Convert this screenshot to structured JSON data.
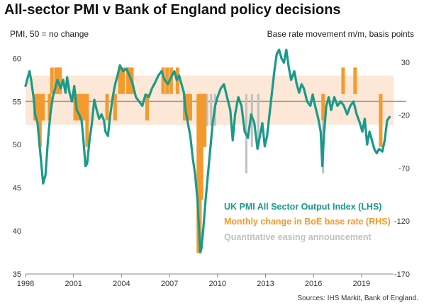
{
  "title": "All-sector PMI v Bank of England policy decisions",
  "left_axis_label": "PMI, 50 = no change",
  "right_axis_label": "Base rate movement m/m, basis points",
  "source": "Sources: IHS Markit, Bank of England.",
  "colors": {
    "pmi": "#1a9a8a",
    "rate": "#f39a2e",
    "qe": "#c0c0c0",
    "band": "#fde7d6",
    "ref_line": "#9a9a9a"
  },
  "chart_data": {
    "type": "line",
    "title": "All-sector PMI v Bank of England policy decisions",
    "ylabel_left": "PMI, 50 = no change",
    "ylabel_right": "Base rate movement m/m, basis points",
    "ylim_left": [
      35,
      62
    ],
    "ylim_right": [
      -170,
      50
    ],
    "yticks_left": [
      35,
      40,
      45,
      50,
      55,
      60
    ],
    "yticks_right": [
      30,
      -20,
      -70,
      -120,
      -170
    ],
    "xticks": [
      "1998",
      "2001",
      "2004",
      "2007",
      "2010",
      "2013",
      "2016",
      "2019"
    ],
    "xlim": [
      1998.0,
      2021.0
    ],
    "shaded_band_left": [
      52.3,
      58.0
    ],
    "reference_line_left": 55,
    "legend": [
      {
        "label": "UK PMI All Sector Output Index (LHS)",
        "color": "#1a9a8a"
      },
      {
        "label": "Monthly change in BoE base rate (RHS)",
        "color": "#f39a2e"
      },
      {
        "label": "Quantitative easing announcement",
        "color": "#c0c0c0"
      }
    ],
    "series": [
      {
        "name": "UK PMI All Sector Output Index (LHS)",
        "axis": "left",
        "points": [
          [
            1998.0,
            56.8
          ],
          [
            1998.1,
            57.5
          ],
          [
            1998.25,
            58.5
          ],
          [
            1998.35,
            57.5
          ],
          [
            1998.5,
            55.5
          ],
          [
            1998.6,
            53.5
          ],
          [
            1998.75,
            52.5
          ],
          [
            1998.85,
            50.5
          ],
          [
            1999.0,
            47.5
          ],
          [
            1999.1,
            45.5
          ],
          [
            1999.25,
            46.5
          ],
          [
            1999.4,
            50.5
          ],
          [
            1999.55,
            53.5
          ],
          [
            1999.7,
            55.5
          ],
          [
            1999.85,
            56.5
          ],
          [
            2000.0,
            57.5
          ],
          [
            2000.2,
            56.5
          ],
          [
            2000.35,
            57.5
          ],
          [
            2000.5,
            56.0
          ],
          [
            2000.6,
            57.8
          ],
          [
            2000.75,
            56.0
          ],
          [
            2000.9,
            55.0
          ],
          [
            2001.05,
            56.8
          ],
          [
            2001.2,
            54.0
          ],
          [
            2001.35,
            53.5
          ],
          [
            2001.5,
            52.8
          ],
          [
            2001.6,
            51.0
          ],
          [
            2001.75,
            47.5
          ],
          [
            2001.85,
            47.8
          ],
          [
            2002.0,
            50.5
          ],
          [
            2002.15,
            52.5
          ],
          [
            2002.3,
            55.2
          ],
          [
            2002.45,
            54.0
          ],
          [
            2002.6,
            53.0
          ],
          [
            2002.75,
            53.5
          ],
          [
            2002.9,
            52.8
          ],
          [
            2003.0,
            51.5
          ],
          [
            2003.15,
            51.0
          ],
          [
            2003.3,
            53.5
          ],
          [
            2003.45,
            55.5
          ],
          [
            2003.6,
            57.0
          ],
          [
            2003.75,
            58.0
          ],
          [
            2003.9,
            59.2
          ],
          [
            2004.1,
            58.5
          ],
          [
            2004.3,
            58.8
          ],
          [
            2004.5,
            58.0
          ],
          [
            2004.7,
            57.0
          ],
          [
            2004.9,
            55.5
          ],
          [
            2005.1,
            55.0
          ],
          [
            2005.3,
            54.5
          ],
          [
            2005.5,
            55.8
          ],
          [
            2005.7,
            55.5
          ],
          [
            2005.9,
            56.5
          ],
          [
            2006.1,
            57.2
          ],
          [
            2006.3,
            58.0
          ],
          [
            2006.5,
            58.5
          ],
          [
            2006.7,
            57.5
          ],
          [
            2006.9,
            57.0
          ],
          [
            2007.1,
            57.8
          ],
          [
            2007.3,
            58.5
          ],
          [
            2007.45,
            57.5
          ],
          [
            2007.6,
            58.0
          ],
          [
            2007.75,
            57.0
          ],
          [
            2007.9,
            56.0
          ],
          [
            2008.0,
            54.0
          ],
          [
            2008.15,
            52.5
          ],
          [
            2008.3,
            51.0
          ],
          [
            2008.45,
            48.5
          ],
          [
            2008.6,
            46.5
          ],
          [
            2008.75,
            43.5
          ],
          [
            2008.85,
            40.0
          ],
          [
            2008.92,
            37.5
          ],
          [
            2009.0,
            38.0
          ],
          [
            2009.1,
            40.0
          ],
          [
            2009.25,
            43.5
          ],
          [
            2009.4,
            46.5
          ],
          [
            2009.55,
            49.5
          ],
          [
            2009.7,
            52.5
          ],
          [
            2009.85,
            54.5
          ],
          [
            2010.0,
            55.5
          ],
          [
            2010.2,
            56.5
          ],
          [
            2010.4,
            57.0
          ],
          [
            2010.6,
            55.5
          ],
          [
            2010.8,
            54.0
          ],
          [
            2010.95,
            50.5
          ],
          [
            2011.1,
            53.5
          ],
          [
            2011.3,
            55.5
          ],
          [
            2011.5,
            54.5
          ],
          [
            2011.7,
            51.5
          ],
          [
            2011.9,
            50.8
          ],
          [
            2012.1,
            53.5
          ],
          [
            2012.3,
            52.5
          ],
          [
            2012.5,
            49.5
          ],
          [
            2012.65,
            51.0
          ],
          [
            2012.8,
            52.5
          ],
          [
            2012.95,
            49.8
          ],
          [
            2013.1,
            51.0
          ],
          [
            2013.25,
            53.5
          ],
          [
            2013.4,
            56.0
          ],
          [
            2013.55,
            58.5
          ],
          [
            2013.7,
            60.5
          ],
          [
            2013.85,
            61.0
          ],
          [
            2014.0,
            60.0
          ],
          [
            2014.15,
            59.5
          ],
          [
            2014.3,
            61.0
          ],
          [
            2014.45,
            59.0
          ],
          [
            2014.6,
            57.5
          ],
          [
            2014.8,
            58.5
          ],
          [
            2014.95,
            57.0
          ],
          [
            2015.1,
            56.0
          ],
          [
            2015.25,
            57.0
          ],
          [
            2015.4,
            56.5
          ],
          [
            2015.6,
            55.0
          ],
          [
            2015.8,
            54.5
          ],
          [
            2015.95,
            55.8
          ],
          [
            2016.1,
            54.5
          ],
          [
            2016.3,
            53.0
          ],
          [
            2016.45,
            51.5
          ],
          [
            2016.55,
            47.5
          ],
          [
            2016.65,
            51.0
          ],
          [
            2016.8,
            54.5
          ],
          [
            2016.95,
            55.5
          ],
          [
            2017.1,
            54.0
          ],
          [
            2017.3,
            55.5
          ],
          [
            2017.5,
            54.5
          ],
          [
            2017.7,
            55.0
          ],
          [
            2017.9,
            54.5
          ],
          [
            2018.1,
            53.5
          ],
          [
            2018.3,
            54.5
          ],
          [
            2018.5,
            55.0
          ],
          [
            2018.7,
            53.5
          ],
          [
            2018.9,
            52.5
          ],
          [
            2019.05,
            51.5
          ],
          [
            2019.2,
            53.0
          ],
          [
            2019.35,
            50.0
          ],
          [
            2019.5,
            51.5
          ],
          [
            2019.65,
            50.5
          ],
          [
            2019.8,
            49.5
          ],
          [
            2019.95,
            49.0
          ],
          [
            2020.1,
            49.5
          ],
          [
            2020.3,
            49.2
          ],
          [
            2020.45,
            50.5
          ],
          [
            2020.6,
            52.8
          ],
          [
            2020.75,
            53.2
          ]
        ]
      },
      {
        "name": "Monthly change in BoE base rate (RHS)",
        "axis": "right",
        "bars": [
          [
            1998.6,
            -25
          ],
          [
            1998.8,
            -25
          ],
          [
            1998.9,
            -50
          ],
          [
            1999.05,
            -25
          ],
          [
            1999.1,
            -25
          ],
          [
            1999.5,
            -25
          ],
          [
            1999.65,
            25
          ],
          [
            1999.9,
            25
          ],
          [
            2000.1,
            25
          ],
          [
            2000.15,
            25
          ],
          [
            2001.1,
            -25
          ],
          [
            2001.3,
            -25
          ],
          [
            2001.5,
            -25
          ],
          [
            2001.65,
            -25
          ],
          [
            2001.75,
            -25
          ],
          [
            2001.85,
            -50
          ],
          [
            2003.1,
            -25
          ],
          [
            2003.6,
            -25
          ],
          [
            2003.9,
            25
          ],
          [
            2004.1,
            25
          ],
          [
            2004.4,
            25
          ],
          [
            2004.5,
            25
          ],
          [
            2004.65,
            25
          ],
          [
            2005.6,
            -25
          ],
          [
            2006.6,
            25
          ],
          [
            2006.85,
            25
          ],
          [
            2007.1,
            25
          ],
          [
            2007.5,
            25
          ],
          [
            2007.95,
            -25
          ],
          [
            2008.15,
            -25
          ],
          [
            2008.3,
            -25
          ],
          [
            2008.8,
            -150
          ],
          [
            2008.9,
            -150
          ],
          [
            2009.0,
            -100
          ],
          [
            2009.1,
            -50
          ],
          [
            2009.2,
            -50
          ],
          [
            2016.6,
            -25
          ],
          [
            2017.85,
            25
          ],
          [
            2018.6,
            25
          ],
          [
            2020.2,
            -50
          ]
        ]
      },
      {
        "name": "Quantitative easing announcement",
        "axis": "right",
        "bars": [
          [
            2009.15,
            -40
          ],
          [
            2009.35,
            -30
          ],
          [
            2009.6,
            -30
          ],
          [
            2009.85,
            -30
          ],
          [
            2011.8,
            -75
          ],
          [
            2012.15,
            -50
          ],
          [
            2012.55,
            -50
          ],
          [
            2016.6,
            -75
          ]
        ]
      }
    ]
  }
}
